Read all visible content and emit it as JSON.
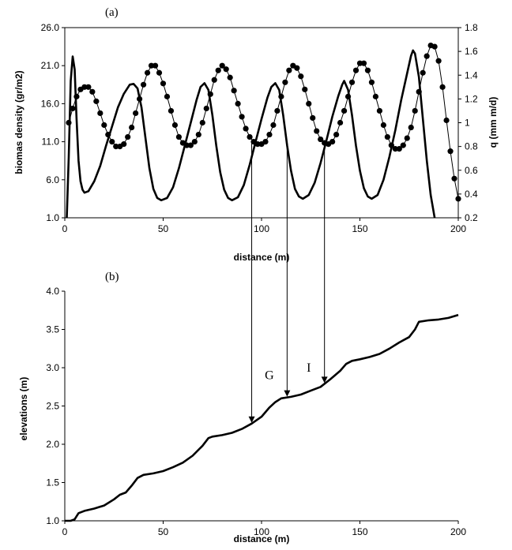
{
  "chart_data": [
    {
      "panel_label": "(a)",
      "type": "line",
      "xlabel": "distance (m)",
      "ylabel_left": "biomas density (gr/m2)",
      "ylabel_right": "q (mm m/d)",
      "xlim": [
        0,
        200
      ],
      "ylim_left": [
        1.0,
        26.0
      ],
      "ylim_right": [
        0.2,
        1.8
      ],
      "x_ticks": [
        "0",
        "50",
        "100",
        "150",
        "200"
      ],
      "y_ticks_left": [
        "1.0",
        "6.0",
        "11.0",
        "16.0",
        "21.0",
        "26.0"
      ],
      "y_ticks_right": [
        "0.2",
        "0.4",
        "0.6",
        "0.8",
        "1",
        "1.2",
        "1.4",
        "1.6",
        "1.8"
      ],
      "series": [
        {
          "axis": "left",
          "style": "thick-line",
          "points": [
            [
              1,
              1.0
            ],
            [
              2,
              9.0
            ],
            [
              3,
              19.0
            ],
            [
              4,
              22.2
            ],
            [
              5,
              20.5
            ],
            [
              6,
              14.0
            ],
            [
              7,
              8.5
            ],
            [
              8,
              5.8
            ],
            [
              9,
              4.7
            ],
            [
              10,
              4.3
            ],
            [
              12,
              4.5
            ],
            [
              15,
              5.8
            ],
            [
              18,
              7.8
            ],
            [
              21,
              10.5
            ],
            [
              24,
              13.0
            ],
            [
              27,
              15.5
            ],
            [
              30,
              17.3
            ],
            [
              33,
              18.5
            ],
            [
              35,
              18.6
            ],
            [
              37,
              18.0
            ],
            [
              39,
              15.5
            ],
            [
              41,
              11.5
            ],
            [
              43,
              7.5
            ],
            [
              45,
              4.8
            ],
            [
              47,
              3.6
            ],
            [
              49,
              3.3
            ],
            [
              52,
              3.6
            ],
            [
              55,
              5.0
            ],
            [
              58,
              7.5
            ],
            [
              61,
              10.5
            ],
            [
              64,
              13.5
            ],
            [
              67,
              16.5
            ],
            [
              69,
              18.2
            ],
            [
              71,
              18.7
            ],
            [
              73,
              17.8
            ],
            [
              75,
              14.5
            ],
            [
              77,
              10.5
            ],
            [
              79,
              7.0
            ],
            [
              81,
              4.7
            ],
            [
              83,
              3.6
            ],
            [
              85,
              3.3
            ],
            [
              88,
              3.7
            ],
            [
              91,
              5.3
            ],
            [
              94,
              8.0
            ],
            [
              97,
              11.0
            ],
            [
              100,
              14.0
            ],
            [
              103,
              16.8
            ],
            [
              105,
              18.2
            ],
            [
              107,
              18.7
            ],
            [
              109,
              17.8
            ],
            [
              111,
              14.5
            ],
            [
              113,
              10.5
            ],
            [
              115,
              7.2
            ],
            [
              117,
              4.8
            ],
            [
              119,
              3.8
            ],
            [
              121,
              3.5
            ],
            [
              124,
              4.0
            ],
            [
              127,
              5.6
            ],
            [
              130,
              8.2
            ],
            [
              133,
              11.2
            ],
            [
              136,
              14.3
            ],
            [
              139,
              17.0
            ],
            [
              141,
              18.5
            ],
            [
              142,
              19.0
            ],
            [
              144,
              17.8
            ],
            [
              146,
              14.5
            ],
            [
              148,
              10.5
            ],
            [
              150,
              7.2
            ],
            [
              152,
              4.9
            ],
            [
              154,
              3.8
            ],
            [
              156,
              3.5
            ],
            [
              159,
              4.0
            ],
            [
              162,
              6.0
            ],
            [
              165,
              9.0
            ],
            [
              168,
              12.5
            ],
            [
              171,
              16.5
            ],
            [
              174,
              20.0
            ],
            [
              176,
              22.3
            ],
            [
              177,
              23.0
            ],
            [
              178,
              22.6
            ],
            [
              180,
              19.5
            ],
            [
              182,
              14.0
            ],
            [
              184,
              8.5
            ],
            [
              186,
              4.0
            ],
            [
              188,
              1.0
            ]
          ]
        },
        {
          "axis": "right",
          "style": "line-with-markers",
          "points": [
            [
              2,
              1.0
            ],
            [
              4,
              1.12
            ],
            [
              6,
              1.22
            ],
            [
              8,
              1.28
            ],
            [
              10,
              1.3
            ],
            [
              12,
              1.3
            ],
            [
              14,
              1.26
            ],
            [
              16,
              1.18
            ],
            [
              18,
              1.08
            ],
            [
              20,
              0.98
            ],
            [
              22,
              0.9
            ],
            [
              24,
              0.84
            ],
            [
              26,
              0.8
            ],
            [
              28,
              0.8
            ],
            [
              30,
              0.82
            ],
            [
              32,
              0.88
            ],
            [
              34,
              0.96
            ],
            [
              36,
              1.08
            ],
            [
              38,
              1.2
            ],
            [
              40,
              1.32
            ],
            [
              42,
              1.42
            ],
            [
              44,
              1.48
            ],
            [
              46,
              1.48
            ],
            [
              48,
              1.42
            ],
            [
              50,
              1.33
            ],
            [
              52,
              1.22
            ],
            [
              54,
              1.1
            ],
            [
              56,
              0.98
            ],
            [
              58,
              0.88
            ],
            [
              60,
              0.83
            ],
            [
              62,
              0.81
            ],
            [
              64,
              0.81
            ],
            [
              66,
              0.84
            ],
            [
              68,
              0.9
            ],
            [
              70,
              1.0
            ],
            [
              72,
              1.12
            ],
            [
              74,
              1.24
            ],
            [
              76,
              1.36
            ],
            [
              78,
              1.44
            ],
            [
              80,
              1.48
            ],
            [
              82,
              1.45
            ],
            [
              84,
              1.38
            ],
            [
              86,
              1.27
            ],
            [
              88,
              1.16
            ],
            [
              90,
              1.05
            ],
            [
              92,
              0.95
            ],
            [
              94,
              0.88
            ],
            [
              96,
              0.84
            ],
            [
              98,
              0.82
            ],
            [
              100,
              0.82
            ],
            [
              102,
              0.84
            ],
            [
              104,
              0.9
            ],
            [
              106,
              0.98
            ],
            [
              108,
              1.1
            ],
            [
              110,
              1.22
            ],
            [
              112,
              1.34
            ],
            [
              114,
              1.44
            ],
            [
              116,
              1.48
            ],
            [
              118,
              1.46
            ],
            [
              120,
              1.39
            ],
            [
              122,
              1.28
            ],
            [
              124,
              1.16
            ],
            [
              126,
              1.04
            ],
            [
              128,
              0.93
            ],
            [
              130,
              0.86
            ],
            [
              132,
              0.83
            ],
            [
              134,
              0.82
            ],
            [
              136,
              0.84
            ],
            [
              138,
              0.9
            ],
            [
              140,
              1.0
            ],
            [
              142,
              1.1
            ],
            [
              144,
              1.22
            ],
            [
              146,
              1.34
            ],
            [
              148,
              1.44
            ],
            [
              150,
              1.5
            ],
            [
              152,
              1.5
            ],
            [
              154,
              1.44
            ],
            [
              156,
              1.34
            ],
            [
              158,
              1.22
            ],
            [
              160,
              1.1
            ],
            [
              162,
              0.98
            ],
            [
              164,
              0.88
            ],
            [
              166,
              0.81
            ],
            [
              168,
              0.78
            ],
            [
              170,
              0.78
            ],
            [
              172,
              0.81
            ],
            [
              174,
              0.87
            ],
            [
              176,
              0.96
            ],
            [
              178,
              1.1
            ],
            [
              180,
              1.26
            ],
            [
              182,
              1.42
            ],
            [
              184,
              1.56
            ],
            [
              186,
              1.65
            ],
            [
              188,
              1.64
            ],
            [
              190,
              1.52
            ],
            [
              192,
              1.3
            ],
            [
              194,
              1.02
            ],
            [
              196,
              0.76
            ],
            [
              198,
              0.53
            ],
            [
              200,
              0.36
            ]
          ]
        }
      ]
    },
    {
      "panel_label": "(b)",
      "type": "line",
      "xlabel": "distance (m)",
      "ylabel": "elevations (m)",
      "xlim": [
        0,
        200
      ],
      "ylim": [
        1.0,
        4.0
      ],
      "x_ticks": [
        "0",
        "50",
        "100",
        "150",
        "200"
      ],
      "y_ticks": [
        "1.0",
        "1.5",
        "2.0",
        "2.5",
        "3.0",
        "3.5",
        "4.0"
      ],
      "series": [
        {
          "style": "thick-line",
          "points": [
            [
              0,
              1.0
            ],
            [
              3,
              1.0
            ],
            [
              5,
              1.02
            ],
            [
              7,
              1.1
            ],
            [
              10,
              1.13
            ],
            [
              15,
              1.16
            ],
            [
              20,
              1.2
            ],
            [
              25,
              1.28
            ],
            [
              28,
              1.34
            ],
            [
              31,
              1.37
            ],
            [
              34,
              1.46
            ],
            [
              37,
              1.56
            ],
            [
              40,
              1.6
            ],
            [
              45,
              1.62
            ],
            [
              50,
              1.65
            ],
            [
              55,
              1.7
            ],
            [
              60,
              1.76
            ],
            [
              65,
              1.85
            ],
            [
              70,
              1.98
            ],
            [
              73,
              2.08
            ],
            [
              75,
              2.1
            ],
            [
              80,
              2.12
            ],
            [
              85,
              2.15
            ],
            [
              90,
              2.2
            ],
            [
              95,
              2.27
            ],
            [
              100,
              2.36
            ],
            [
              104,
              2.48
            ],
            [
              107,
              2.55
            ],
            [
              110,
              2.6
            ],
            [
              115,
              2.62
            ],
            [
              120,
              2.65
            ],
            [
              125,
              2.7
            ],
            [
              130,
              2.75
            ],
            [
              135,
              2.85
            ],
            [
              140,
              2.96
            ],
            [
              143,
              3.05
            ],
            [
              146,
              3.09
            ],
            [
              150,
              3.11
            ],
            [
              155,
              3.14
            ],
            [
              160,
              3.18
            ],
            [
              165,
              3.25
            ],
            [
              170,
              3.33
            ],
            [
              175,
              3.4
            ],
            [
              178,
              3.5
            ],
            [
              180,
              3.6
            ],
            [
              185,
              3.62
            ],
            [
              190,
              3.63
            ],
            [
              195,
              3.65
            ],
            [
              200,
              3.69
            ]
          ]
        }
      ],
      "annotations": [
        {
          "text": "G",
          "x": 104,
          "y": 2.85
        },
        {
          "text": "I",
          "x": 124,
          "y": 2.95
        }
      ],
      "arrows_from_panel_a_x": [
        95,
        113,
        132
      ]
    }
  ]
}
